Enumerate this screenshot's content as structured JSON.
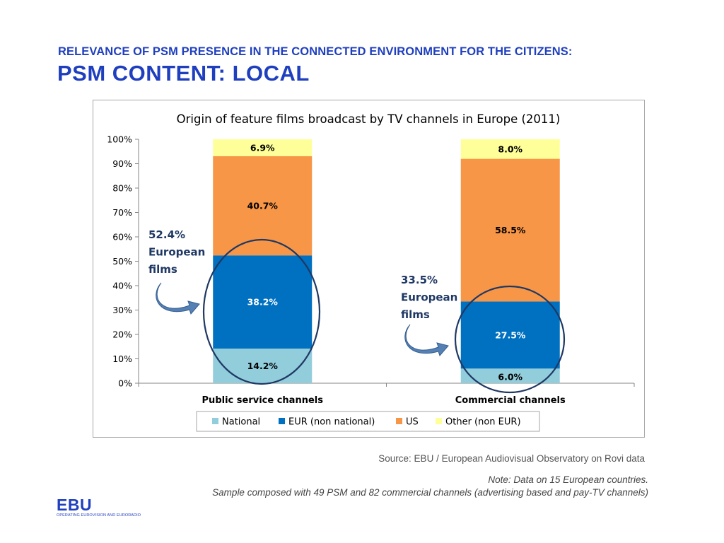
{
  "slide": {
    "subtitle": "RELEVANCE OF PSM PRESENCE IN THE CONNECTED ENVIRONMENT FOR THE CITIZENS:",
    "title": "PSM CONTENT: LOCAL",
    "source": "Source: EBU / European Audiovisual Observatory on Rovi data",
    "note_line1": "Note: Data on 15 European countries.",
    "note_line2": "Sample composed with 49 PSM and 82 commercial channels (advertising based and pay-TV channels)",
    "logo_word": "EBU",
    "logo_tagline": "OPERATING EUROVISION AND EURORADIO",
    "accent_color": "#1f3fbf"
  },
  "chart_data": {
    "type": "bar",
    "stacked": true,
    "title": "Origin of feature films broadcast by TV channels in Europe (2011)",
    "categories": [
      "Public service channels",
      "Commercial channels"
    ],
    "ylim": [
      0,
      100
    ],
    "yticks": [
      "0%",
      "10%",
      "20%",
      "30%",
      "40%",
      "50%",
      "60%",
      "70%",
      "80%",
      "90%",
      "100%"
    ],
    "legend_position": "bottom",
    "series": [
      {
        "name": "National",
        "color": "#92cddc",
        "values": [
          14.2,
          6.0
        ],
        "labels": [
          "14.2%",
          "6.0%"
        ],
        "label_color": "#000000"
      },
      {
        "name": "EUR (non national)",
        "color": "#0070c0",
        "values": [
          38.2,
          27.5
        ],
        "labels": [
          "38.2%",
          "27.5%"
        ],
        "label_color": "#ffffff"
      },
      {
        "name": "US",
        "color": "#f79646",
        "values": [
          40.7,
          58.5
        ],
        "labels": [
          "40.7%",
          "58.5%"
        ],
        "label_color": "#000000"
      },
      {
        "name": "Other (non EUR)",
        "color": "#ffff99",
        "values": [
          6.9,
          8.0
        ],
        "labels": [
          "6.9%",
          "8.0%"
        ],
        "label_color": "#000000"
      }
    ],
    "annotations": [
      {
        "category": 0,
        "lines": [
          "52.4%",
          "European",
          "films"
        ],
        "color": "#1f3864"
      },
      {
        "category": 1,
        "lines": [
          "33.5%",
          "European",
          "films"
        ],
        "color": "#1f3864"
      }
    ]
  }
}
